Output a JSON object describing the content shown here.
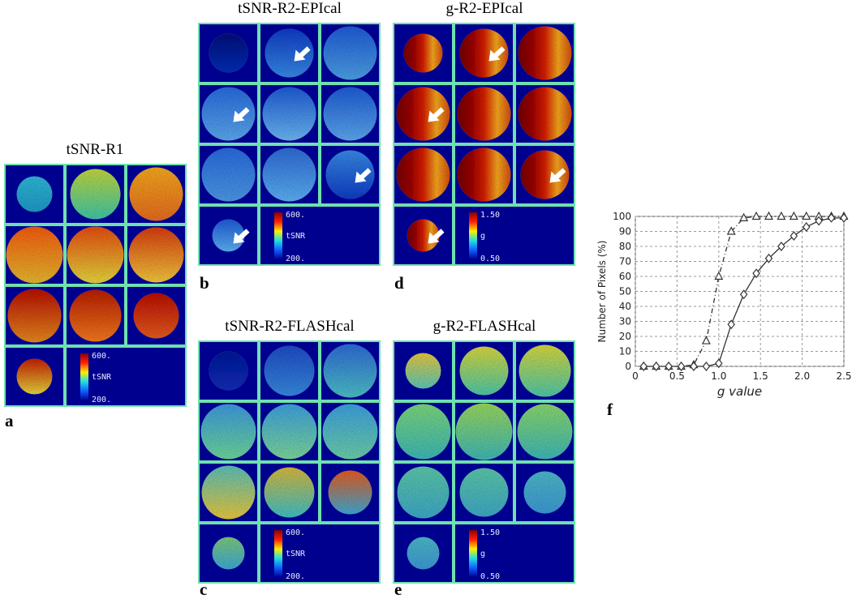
{
  "panels": [
    {
      "label": "a",
      "title": "tSNR-R1",
      "colorbar": {
        "max": "600.",
        "name": "tSNR",
        "min": "200."
      }
    },
    {
      "label": "b",
      "title": "tSNR-R2-EPIcal",
      "colorbar": {
        "max": "600.",
        "name": "tSNR",
        "min": "200."
      }
    },
    {
      "label": "d",
      "title": "g-R2-EPIcal",
      "colorbar": {
        "max": "1.50",
        "name": "g",
        "min": "0.50"
      }
    },
    {
      "label": "c",
      "title": "tSNR-R2-FLASHcal",
      "colorbar": {
        "max": "600.",
        "name": "tSNR",
        "min": "200."
      }
    },
    {
      "label": "e",
      "title": "g-R2-FLASHcal",
      "colorbar": {
        "max": "1.50",
        "name": "g",
        "min": "0.50"
      }
    }
  ],
  "chart_label": "f",
  "chart_data": {
    "type": "line",
    "xlabel": "g value",
    "ylabel": "Number of Pixels (%)",
    "x": [
      0.1,
      0.25,
      0.4,
      0.55,
      0.7,
      0.85,
      1.0,
      1.15,
      1.3,
      1.45,
      1.6,
      1.75,
      1.9,
      2.05,
      2.2,
      2.35,
      2.5
    ],
    "series": [
      {
        "color": "#333333",
        "marker": "triangle",
        "linestyle": "dashdot",
        "values": [
          0,
          0,
          0,
          0,
          1,
          17,
          60,
          90,
          99,
          100,
          100,
          100,
          100,
          100,
          100,
          100,
          100
        ]
      },
      {
        "color": "#333333",
        "marker": "diamond",
        "linestyle": "solid",
        "values": [
          0,
          0,
          0,
          0,
          0,
          0,
          2,
          28,
          48,
          62,
          72,
          80,
          87,
          93,
          97,
          99,
          99
        ]
      }
    ],
    "xlim": [
      0,
      2.5
    ],
    "xticks": [
      0,
      0.5,
      {
        "value": 1,
        "label": "1.0"
      },
      1.5,
      {
        "value": 2,
        "label": "2.0"
      },
      2.5
    ],
    "ylim": [
      0,
      100
    ],
    "yticks": [
      0,
      10,
      20,
      30,
      40,
      50,
      60,
      70,
      80,
      90,
      100
    ],
    "grid": true
  }
}
